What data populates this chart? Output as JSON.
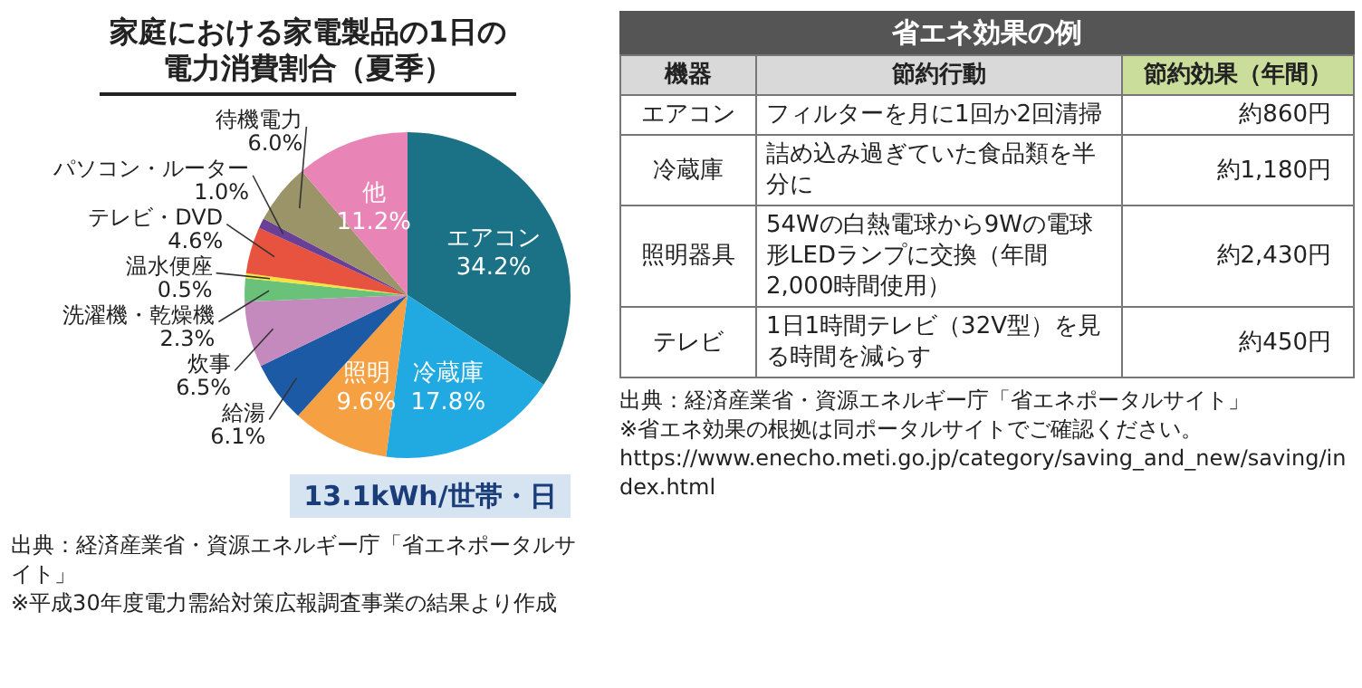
{
  "chart_data": [
    {
      "type": "pie",
      "value_labels": [
        "34.2%",
        "17.8%",
        "9.6%",
        "6.1%",
        "6.5%",
        "2.3%",
        "0.5%",
        "4.6%",
        "1.0%",
        "6.0%",
        "11.2%"
      ],
      "title": "家庭における家電製品の1日の電力消費割合（夏季）",
      "categories": [
        "エアコン",
        "冷蔵庫",
        "照明",
        "給湯",
        "炊事",
        "洗濯機・乾燥機",
        "温水便座",
        "テレビ・DVD",
        "パソコン・ルーター",
        "待機電力",
        "他"
      ],
      "values": [
        34.2,
        17.8,
        9.6,
        6.1,
        6.5,
        2.3,
        0.5,
        4.6,
        1.0,
        6.0,
        11.2
      ],
      "colors": [
        "#1b7286",
        "#21a9e1",
        "#f4a043",
        "#1c5aa6",
        "#c48abd",
        "#69c17a",
        "#f4e33d",
        "#e8533f",
        "#6a3f96",
        "#9a9468",
        "#e985b6"
      ],
      "annotations": [
        "13.1kWh/世帯・日",
        "出典：経済産業省・資源エネルギー庁「省エネポータルサイト」",
        "※平成30年度電力需給対策広報調査事業の結果より作成"
      ]
    },
    {
      "type": "other",
      "title": "省エネ効果の例",
      "categories": [
        "機器",
        "節約行動",
        "節約効果（年間）"
      ],
      "y_categories": [
        "エアコン",
        "冷蔵庫",
        "照明器具",
        "テレビ"
      ],
      "annotations": [
        "フィルターを月に1回か2回清掃",
        "約860円",
        "詰め込み過ぎていた食品類を半分に",
        "約1,180円",
        "54Wの白熱電球から9Wの電球形LEDランプに交換（年間2,000時間使用）",
        "約2,430円",
        "1日1時間テレビ（32V型）を見る時間を減らす",
        "約450円",
        "出典：経済産業省・資源エネルギー庁「省エネポータルサイト」",
        "※省エネ効果の根拠は同ポータルサイトでご確認ください。",
        "https://www.enecho.meti.go.jp/category/saving_and_new/saving/index.html"
      ]
    }
  ]
}
